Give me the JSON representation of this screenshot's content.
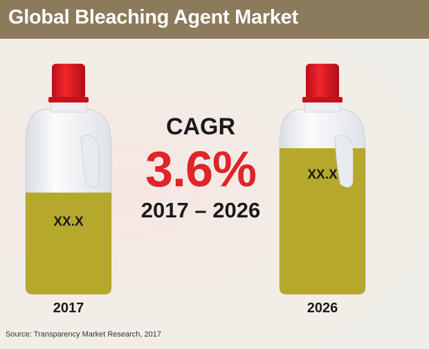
{
  "title": "Global Bleaching Agent Market",
  "cagr": {
    "label": "CAGR",
    "value": "3.6%",
    "period": "2017 – 2026"
  },
  "source": "Source: Transparency Market Research, 2017",
  "colors": {
    "title_bar": "#8c7a5c",
    "cagr_value": "#e02427",
    "liquid": "#b5a82c",
    "cap": "#e11a22",
    "bottle": "#eef0f3"
  },
  "chart_data": {
    "type": "bar",
    "title": "Global Bleaching Agent Market",
    "categories": [
      "2017",
      "2026"
    ],
    "value_labels": [
      "XX.X",
      "XX.X"
    ],
    "fill_fraction": [
      0.55,
      0.79
    ]
  }
}
